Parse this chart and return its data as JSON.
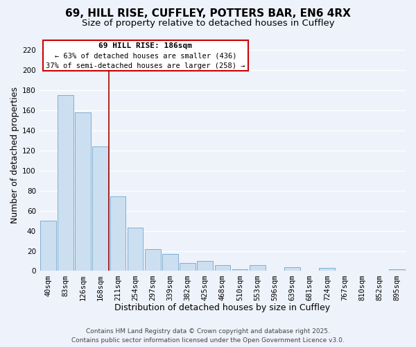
{
  "title": "69, HILL RISE, CUFFLEY, POTTERS BAR, EN6 4RX",
  "subtitle": "Size of property relative to detached houses in Cuffley",
  "xlabel": "Distribution of detached houses by size in Cuffley",
  "ylabel": "Number of detached properties",
  "bar_labels": [
    "40sqm",
    "83sqm",
    "126sqm",
    "168sqm",
    "211sqm",
    "254sqm",
    "297sqm",
    "339sqm",
    "382sqm",
    "425sqm",
    "468sqm",
    "510sqm",
    "553sqm",
    "596sqm",
    "639sqm",
    "681sqm",
    "724sqm",
    "767sqm",
    "810sqm",
    "852sqm",
    "895sqm"
  ],
  "bar_values": [
    50,
    175,
    158,
    124,
    74,
    43,
    22,
    17,
    8,
    10,
    6,
    2,
    6,
    0,
    4,
    0,
    3,
    0,
    0,
    0,
    2
  ],
  "bar_color": "#ccdff0",
  "bar_edge_color": "#7fafd0",
  "ylim": [
    0,
    230
  ],
  "yticks": [
    0,
    20,
    40,
    60,
    80,
    100,
    120,
    140,
    160,
    180,
    200,
    220
  ],
  "property_line_x": 3.5,
  "property_line_color": "#aa0000",
  "annotation_line1": "69 HILL RISE: 186sqm",
  "annotation_line2": "← 63% of detached houses are smaller (436)",
  "annotation_line3": "37% of semi-detached houses are larger (258) →",
  "footer_line1": "Contains HM Land Registry data © Crown copyright and database right 2025.",
  "footer_line2": "Contains public sector information licensed under the Open Government Licence v3.0.",
  "background_color": "#eef2fb",
  "grid_color": "#ffffff",
  "title_fontsize": 11,
  "subtitle_fontsize": 9.5,
  "axis_label_fontsize": 9,
  "tick_fontsize": 7.5,
  "footer_fontsize": 6.5
}
